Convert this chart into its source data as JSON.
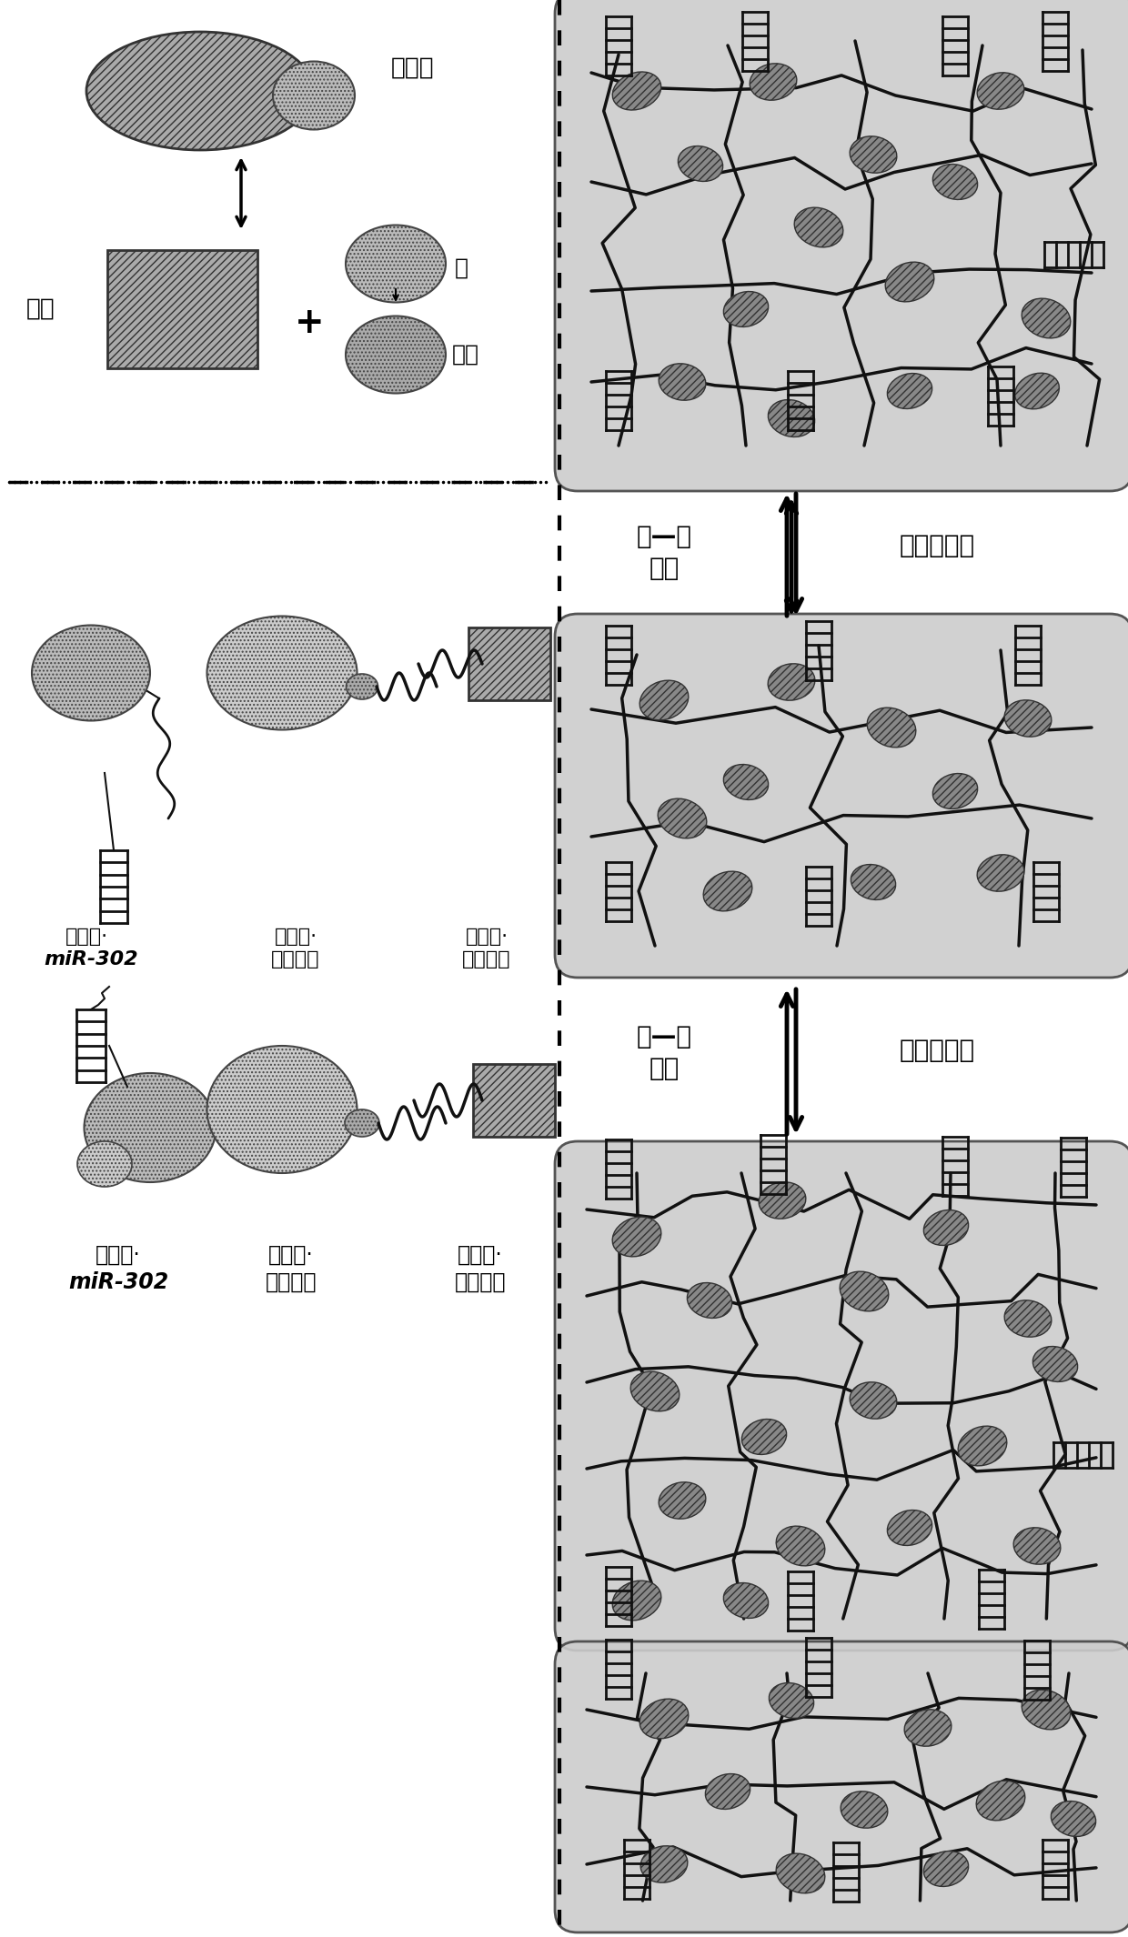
{
  "bg_color": "#ffffff",
  "panel_bg_color": "#cccccc",
  "line_color": "#111111",
  "hatch_dark": "////",
  "hatch_dot": "....",
  "labels": {
    "host": "主体",
    "plus": "+",
    "or": "或",
    "guest": "客体",
    "complex": "复合物",
    "cholesterol_miR302_line1": "胆固醇·",
    "cholesterol_miR302_line2": "miR-302",
    "adamantane_HA_line1": "金冈烷·",
    "adamantane_HA_line2": "透明质酸",
    "cyclodextrin_HA_line1": "环糊精·",
    "cyclodextrin_HA_line2": "透明质酸",
    "shear_dilution": "剪切稀释化",
    "host_guest_line1": "客—主",
    "host_guest_line2": "组装"
  },
  "fig_width": 12.4,
  "fig_height": 21.3,
  "dpi": 100
}
